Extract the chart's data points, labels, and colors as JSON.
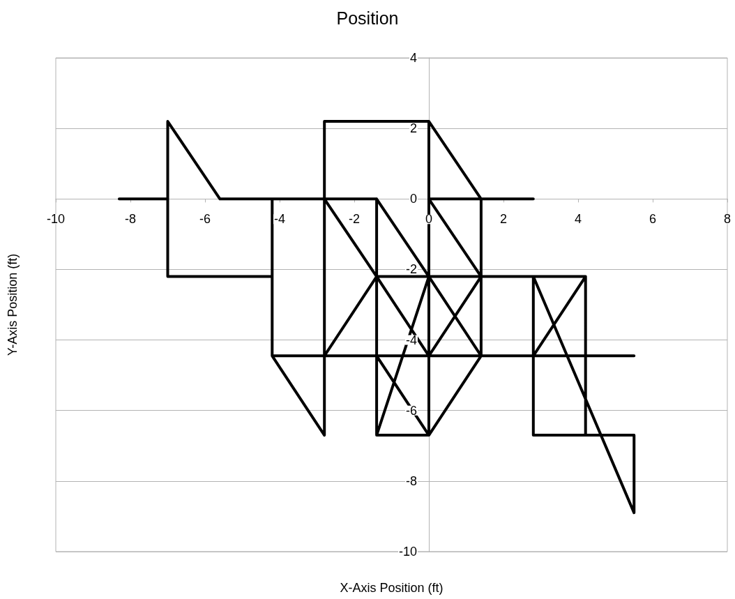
{
  "chart_data": {
    "type": "line",
    "title": "Position",
    "xlabel": "X-Axis Position (ft)",
    "ylabel": "Y-Axis Position (ft)",
    "x": [
      -8.3,
      -7.0,
      -7.0,
      -5.6,
      -4.2,
      -4.2,
      -7.0,
      -7.0,
      -7.0,
      -4.2,
      -4.2,
      -2.8,
      -2.8,
      -4.2,
      -2.8,
      -1.4,
      -2.8,
      -4.2,
      -2.8,
      -2.8,
      -1.4,
      -1.4,
      -1.4,
      -2.8,
      -2.8,
      0,
      1.4,
      2.8,
      1.4,
      0,
      0,
      0,
      1.4,
      1.4,
      1.4,
      1.4,
      0,
      0,
      0,
      -1.4,
      0,
      -1.4,
      0,
      1.4,
      0,
      0,
      -1.4,
      0,
      -1.4,
      -1.4,
      -1.4,
      0,
      0,
      0,
      1.4,
      0,
      1.4,
      2.8,
      4.2,
      5.5,
      4.2,
      4.2,
      2.8,
      2.8,
      2.8,
      1.4,
      2.8,
      4.2,
      2.8,
      4.2,
      4.2,
      4.2,
      5.5,
      5.5,
      2.8
    ],
    "series": [
      {
        "color": "#000000",
        "values": [
          0,
          0,
          2.2,
          0,
          0,
          -2.2,
          -2.2,
          0,
          -2.2,
          -2.2,
          -4.45,
          -6.7,
          -4.45,
          -4.45,
          -4.45,
          -2.2,
          0,
          0,
          0,
          -4.45,
          -4.45,
          -2.2,
          0,
          0,
          2.2,
          2.2,
          0,
          0,
          0,
          0,
          2.2,
          0,
          -2.2,
          0,
          -2.2,
          -4.45,
          -2.2,
          0,
          -2.2,
          0,
          -2.2,
          -2.2,
          -4.45,
          -2.2,
          -2.2,
          -4.45,
          -4.45,
          -6.7,
          -6.7,
          -4.45,
          -6.7,
          -2.2,
          -4.45,
          -6.7,
          -4.45,
          -4.45,
          -4.45,
          -4.45,
          -4.45,
          -4.45,
          -4.45,
          -6.7,
          -6.7,
          -4.45,
          -2.2,
          -2.2,
          -2.2,
          -2.2,
          -4.45,
          -2.2,
          -4.45,
          -6.7,
          -6.7,
          -8.9,
          -2.2
        ]
      }
    ],
    "xlim": [
      -10,
      8
    ],
    "xticks": [
      -10,
      -8,
      -6,
      -4,
      -2,
      0,
      2,
      4,
      6,
      8
    ],
    "ylim": [
      -10,
      4
    ],
    "yticks": [
      -10,
      -8,
      -6,
      -4,
      -2,
      0,
      2,
      4
    ],
    "grid": "y",
    "marker": "none",
    "line_style": "solid"
  }
}
